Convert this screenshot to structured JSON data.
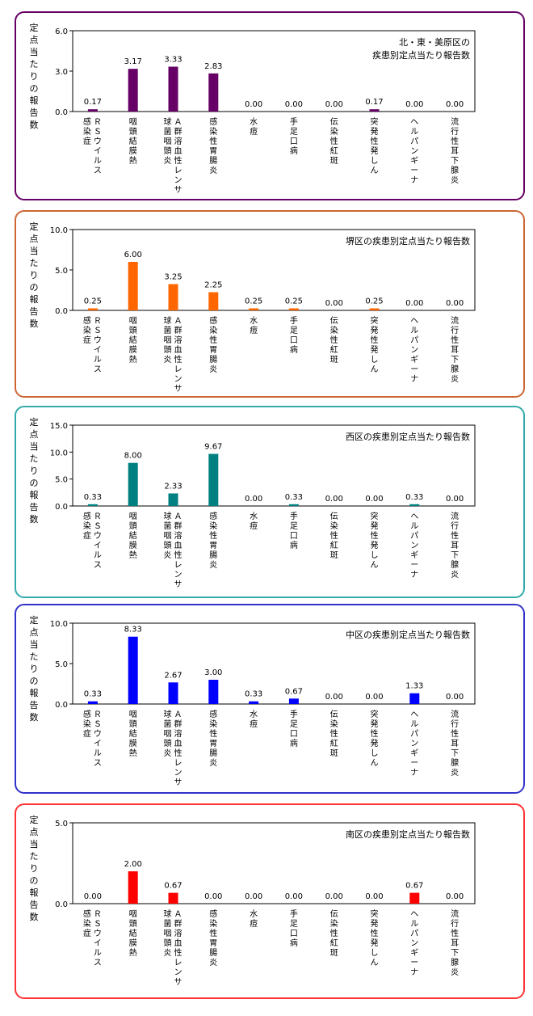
{
  "categories": [
    [
      "Ｒ",
      "Ｓ",
      "ウ",
      "イ",
      "ル",
      "ス",
      "|",
      "感",
      "染",
      "症"
    ],
    [
      "咽",
      "頭",
      "結",
      "膜",
      "熱"
    ],
    [
      "Ａ",
      "群",
      "溶",
      "血",
      "性",
      "レ",
      "ン",
      "サ",
      "|",
      "球",
      "菌",
      "咽",
      "頭",
      "炎"
    ],
    [
      "感",
      "染",
      "性",
      "胃",
      "腸",
      "炎"
    ],
    [
      "水",
      "痘"
    ],
    [
      "手",
      "足",
      "口",
      "病"
    ],
    [
      "伝",
      "染",
      "性",
      "紅",
      "斑"
    ],
    [
      "突",
      "発",
      "性",
      "発",
      "し",
      "ん"
    ],
    [
      "ヘ",
      "ル",
      "パ",
      "ン",
      "ギ",
      "ー",
      "ナ"
    ],
    [
      "流",
      "行",
      "性",
      "耳",
      "下",
      "腺",
      "炎"
    ]
  ],
  "ylabel_chars": [
    "定",
    "点",
    "当",
    "た",
    "り",
    "の",
    "報",
    "告",
    "数"
  ],
  "chart_data": [
    {
      "type": "bar",
      "title_lines": [
        "北・東・美原区の",
        "疾患別定点当たり報告数"
      ],
      "ylim": [
        0,
        6
      ],
      "yticks": [
        "0.0",
        "3.0",
        "6.0"
      ],
      "values": [
        0.17,
        3.17,
        3.33,
        2.83,
        0.0,
        0.0,
        0.0,
        0.17,
        0.0,
        0.0
      ],
      "labels": [
        "0.17",
        "3.17",
        "3.33",
        "2.83",
        "0.00",
        "0.00",
        "0.00",
        "0.17",
        "0.00",
        "0.00"
      ],
      "bar_color": "#660066",
      "border_color": "#660066"
    },
    {
      "type": "bar",
      "title_lines": [
        "堺区の疾患別定点当たり報告数"
      ],
      "ylim": [
        0,
        10
      ],
      "yticks": [
        "0.0",
        "5.0",
        "10.0"
      ],
      "values": [
        0.25,
        6.0,
        3.25,
        2.25,
        0.25,
        0.25,
        0.0,
        0.25,
        0.0,
        0.0
      ],
      "labels": [
        "0.25",
        "6.00",
        "3.25",
        "2.25",
        "0.25",
        "0.25",
        "0.00",
        "0.25",
        "0.00",
        "0.00"
      ],
      "bar_color": "#ff6600",
      "border_color": "#cc6633"
    },
    {
      "type": "bar",
      "title_lines": [
        "西区の疾患別定点当たり報告数"
      ],
      "ylim": [
        0,
        15
      ],
      "yticks": [
        "0.0",
        "5.0",
        "10.0",
        "15.0"
      ],
      "values": [
        0.33,
        8.0,
        2.33,
        9.67,
        0.0,
        0.33,
        0.0,
        0.0,
        0.33,
        0.0
      ],
      "labels": [
        "0.33",
        "8.00",
        "2.33",
        "9.67",
        "0.00",
        "0.33",
        "0.00",
        "0.00",
        "0.33",
        "0.00"
      ],
      "bar_color": "#008080",
      "border_color": "#33aaaa"
    },
    {
      "type": "bar",
      "title_lines": [
        "中区の疾患別定点当たり報告数"
      ],
      "ylim": [
        0,
        10
      ],
      "yticks": [
        "0.0",
        "5.0",
        "10.0"
      ],
      "values": [
        0.33,
        8.33,
        2.67,
        3.0,
        0.33,
        0.67,
        0.0,
        0.0,
        1.33,
        0.0
      ],
      "labels": [
        "0.33",
        "8.33",
        "2.67",
        "3.00",
        "0.33",
        "0.67",
        "0.00",
        "0.00",
        "1.33",
        "0.00"
      ],
      "bar_color": "#0000ff",
      "border_color": "#3333cc"
    },
    {
      "type": "bar",
      "title_lines": [
        "南区の疾患別定点当たり報告数"
      ],
      "ylim": [
        0,
        5
      ],
      "yticks": [
        "0.0",
        "5.0"
      ],
      "values": [
        0.0,
        2.0,
        0.67,
        0.0,
        0.0,
        0.0,
        0.0,
        0.0,
        0.67,
        0.0
      ],
      "labels": [
        "0.00",
        "2.00",
        "0.67",
        "0.00",
        "0.00",
        "0.00",
        "0.00",
        "0.00",
        "0.67",
        "0.00"
      ],
      "bar_color": "#ff0000",
      "border_color": "#ff3333"
    }
  ]
}
